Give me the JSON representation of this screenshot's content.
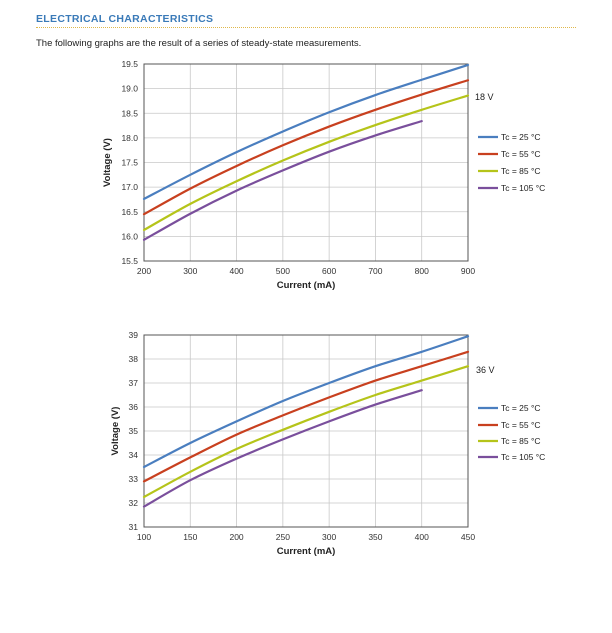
{
  "page": {
    "heading": "ELECTRICAL CHARACTERISTICS",
    "intro": "The following graphs are the result of a series of steady-state measurements."
  },
  "colors": {
    "heading": "#3a7ab8",
    "rule": "#e0b84a",
    "tc25": "#4a7ebf",
    "tc55": "#c8401f",
    "tc85": "#b5c41a",
    "tc105": "#7a4f9c"
  },
  "chart_data": [
    {
      "type": "line",
      "title": "",
      "annotation": "18 V",
      "xlabel": "Current (mA)",
      "ylabel": "Voltage (V)",
      "xlim": [
        200,
        900
      ],
      "ylim": [
        15.5,
        19.5
      ],
      "xticks": [
        200,
        300,
        400,
        500,
        600,
        700,
        800,
        900
      ],
      "yticks": [
        "15.5",
        "16.0",
        "16.5",
        "17.0",
        "17.5",
        "18.0",
        "18.5",
        "19.0",
        "19.5"
      ],
      "grid": true,
      "legend_position": "right",
      "series": [
        {
          "name": "Tc = 25 °C",
          "color": "#4a7ebf",
          "x": [
            200,
            300,
            400,
            500,
            600,
            700,
            800,
            900
          ],
          "y": [
            16.76,
            17.25,
            17.71,
            18.13,
            18.52,
            18.87,
            19.18,
            19.48
          ]
        },
        {
          "name": "Tc = 55 °C",
          "color": "#c8401f",
          "x": [
            200,
            300,
            400,
            500,
            600,
            700,
            800,
            900
          ],
          "y": [
            16.45,
            16.97,
            17.43,
            17.85,
            18.23,
            18.57,
            18.88,
            19.17
          ]
        },
        {
          "name": "Tc = 85 °C",
          "color": "#b5c41a",
          "x": [
            200,
            300,
            400,
            500,
            600,
            700,
            800,
            900
          ],
          "y": [
            16.13,
            16.66,
            17.12,
            17.54,
            17.92,
            18.26,
            18.57,
            18.86
          ]
        },
        {
          "name": "Tc = 105 °C",
          "color": "#7a4f9c",
          "x": [
            200,
            300,
            400,
            500,
            600,
            700,
            800
          ],
          "y": [
            15.93,
            16.46,
            16.93,
            17.34,
            17.72,
            18.05,
            18.34
          ]
        }
      ]
    },
    {
      "type": "line",
      "title": "",
      "annotation": "36 V",
      "xlabel": "Current (mA)",
      "ylabel": "Voltage (V)",
      "xlim": [
        100,
        450
      ],
      "ylim": [
        31,
        39
      ],
      "xticks": [
        100,
        150,
        200,
        250,
        300,
        350,
        400,
        450
      ],
      "yticks": [
        "31",
        "32",
        "33",
        "34",
        "35",
        "36",
        "37",
        "38",
        "39"
      ],
      "grid": true,
      "legend_position": "right",
      "series": [
        {
          "name": "Tc = 25 °C",
          "color": "#4a7ebf",
          "x": [
            100,
            150,
            200,
            250,
            300,
            350,
            400,
            450
          ],
          "y": [
            33.5,
            34.5,
            35.4,
            36.25,
            37.0,
            37.7,
            38.3,
            38.95
          ]
        },
        {
          "name": "Tc = 55 °C",
          "color": "#c8401f",
          "x": [
            100,
            150,
            200,
            250,
            300,
            350,
            400,
            450
          ],
          "y": [
            32.9,
            33.9,
            34.85,
            35.65,
            36.4,
            37.1,
            37.7,
            38.3
          ]
        },
        {
          "name": "Tc = 85 °C",
          "color": "#b5c41a",
          "x": [
            100,
            150,
            200,
            250,
            300,
            350,
            400,
            450
          ],
          "y": [
            32.25,
            33.3,
            34.25,
            35.05,
            35.8,
            36.5,
            37.1,
            37.7
          ]
        },
        {
          "name": "Tc = 105 °C",
          "color": "#7a4f9c",
          "x": [
            100,
            150,
            200,
            250,
            300,
            350,
            400
          ],
          "y": [
            31.85,
            32.95,
            33.85,
            34.65,
            35.4,
            36.1,
            36.7
          ]
        }
      ]
    }
  ]
}
